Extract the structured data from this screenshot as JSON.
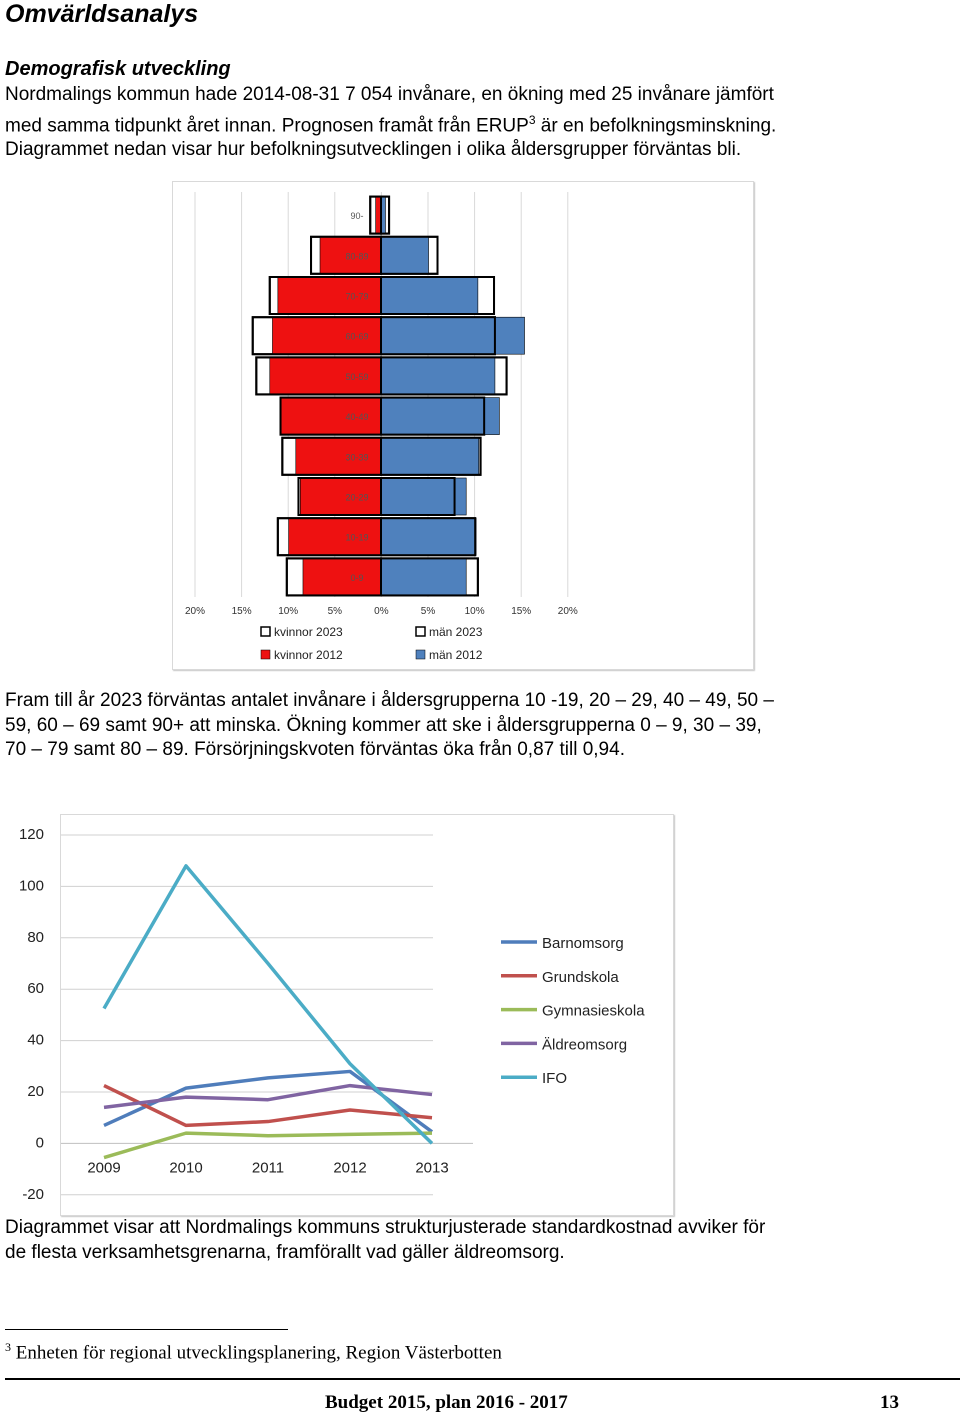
{
  "heading": "Omvärldsanalys",
  "subheading": "Demografisk utveckling",
  "intro": {
    "line1": "Nordmalings kommun hade 2014-08-31 7 054 invånare, en ökning med 25 invånare jämfört",
    "line2a": "med samma tidpunkt året innan. Prognosen framåt från ERUP",
    "line2_sup": "3",
    "line2b": " är en befolkningsminskning.",
    "line3": "Diagrammet nedan visar hur befolkningsutvecklingen i olika åldersgrupper förväntas bli."
  },
  "middle_text": {
    "line1": "Fram till år 2023 förväntas antalet invånare i åldersgrupperna 10 -19, 20 – 29, 40 – 49, 50 –",
    "line2": "59,  60 – 69 samt 90+ att minska. Ökning kommer att ske i åldersgrupperna 0 – 9, 30 – 39,",
    "line3": "70 – 79 samt 80 – 89. Försörjningskvoten förväntas öka från 0,87 till 0,94."
  },
  "after_text": {
    "line1": "Diagrammet visar att Nordmalings kommuns strukturjusterade standardkostnad avviker för",
    "line2": "de flesta verksamhetsgrenarna, framförallt vad gäller äldreomsorg."
  },
  "footnote": {
    "marker": "3",
    "text": " Enheten för regional utvecklingsplanering, Region Västerbotten"
  },
  "footer": {
    "title": "Budget 2015, plan 2016 - 2017",
    "page": "13"
  },
  "colors": {
    "kvinnor_2012": "#ee1111",
    "man_2012": "#4f81bd",
    "outline_2023": "#000000",
    "Barnomsorg": "#4f7dbb",
    "Grundskola": "#c0504d",
    "Gymnasieskola": "#9bbb59",
    "Aldreomsorg": "#8064a2",
    "IFO": "#4bacc6"
  },
  "chart_data": [
    {
      "type": "bar",
      "orientation": "horizontal",
      "subtype": "population-pyramid",
      "categories": [
        "0-9",
        "10-19",
        "20-29",
        "30-39",
        "40-49",
        "50-59",
        "60-69",
        "70-79",
        "80-89",
        "90-"
      ],
      "series": [
        {
          "name": "kvinnor 2023",
          "style": "outline",
          "side": "left",
          "values": [
            10.5,
            11.5,
            9.2,
            11.0,
            11.2,
            13.9,
            14.3,
            12.4,
            7.8,
            1.2
          ]
        },
        {
          "name": "män 2023",
          "style": "outline",
          "side": "right",
          "values": [
            10.8,
            10.5,
            8.2,
            11.1,
            11.5,
            14.0,
            12.7,
            12.6,
            6.3,
            0.9
          ]
        },
        {
          "name": "kvinnor 2012",
          "style": "filled",
          "side": "left",
          "values": [
            8.7,
            10.3,
            9.0,
            9.5,
            11.2,
            12.4,
            12.1,
            11.5,
            6.8,
            0.6
          ]
        },
        {
          "name": "män 2012",
          "style": "filled",
          "side": "right",
          "values": [
            9.5,
            10.6,
            9.5,
            10.9,
            13.2,
            12.7,
            16.0,
            10.8,
            5.3,
            0.5
          ]
        }
      ],
      "xticks": [
        "20%",
        "15%",
        "10%",
        "5%",
        "0%",
        "5%",
        "10%",
        "15%",
        "20%"
      ],
      "xlim": [
        -20,
        20
      ],
      "legend": [
        "kvinnor 2023",
        "män 2023",
        "kvinnor 2012",
        "män 2012"
      ],
      "legend_position": "bottom"
    },
    {
      "type": "line",
      "x": [
        "2009",
        "2010",
        "2011",
        "2012",
        "2013"
      ],
      "series": [
        {
          "name": "Barnomsorg",
          "values": [
            7,
            21.5,
            25.5,
            28,
            4.5
          ]
        },
        {
          "name": "Grundskola",
          "values": [
            22.5,
            7,
            8.5,
            13,
            10
          ]
        },
        {
          "name": "Gymnasieskola",
          "values": [
            -5.5,
            4,
            3,
            3.5,
            4
          ]
        },
        {
          "name": "Äldreomsorg",
          "values": [
            14,
            18,
            17,
            22.5,
            19
          ]
        },
        {
          "name": "IFO",
          "values": [
            52.5,
            108,
            70,
            31,
            0
          ]
        }
      ],
      "yticks": [
        "120",
        "100",
        "80",
        "60",
        "40",
        "20",
        "0",
        "-20"
      ],
      "ylim": [
        -20,
        120
      ],
      "legend_position": "right"
    }
  ]
}
